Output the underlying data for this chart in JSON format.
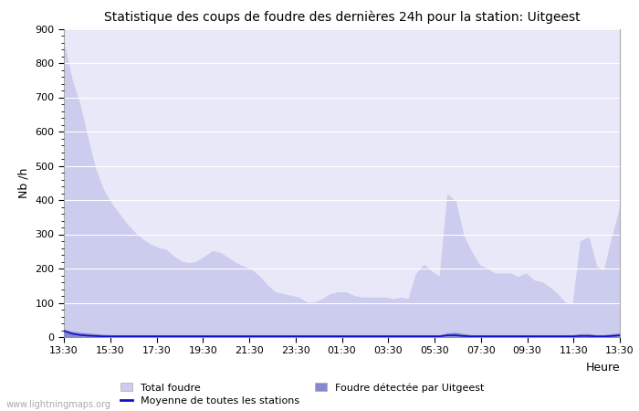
{
  "title": "Statistique des coups de foudre des dernières 24h pour la station: Uitgeest",
  "ylabel": "Nb /h",
  "xlabel": "Heure",
  "ylim": [
    0,
    900
  ],
  "yticks": [
    0,
    100,
    200,
    300,
    400,
    500,
    600,
    700,
    800,
    900
  ],
  "xtick_labels": [
    "13:30",
    "15:30",
    "17:30",
    "19:30",
    "21:30",
    "23:30",
    "01:30",
    "03:30",
    "05:30",
    "07:30",
    "09:30",
    "11:30",
    "13:30"
  ],
  "bg_color": "#ffffff",
  "plot_bg_color": "#e8e8f8",
  "grid_color": "#ffffff",
  "color_total": "#ccccee",
  "color_detected": "#8888cc",
  "color_mean_line": "#1111cc",
  "watermark": "www.lightningmaps.org",
  "total_foudre": [
    855,
    750,
    680,
    580,
    490,
    430,
    390,
    360,
    330,
    305,
    285,
    270,
    260,
    255,
    235,
    220,
    215,
    220,
    235,
    250,
    245,
    230,
    215,
    205,
    195,
    175,
    150,
    130,
    125,
    120,
    115,
    100,
    100,
    110,
    125,
    130,
    130,
    120,
    115,
    115,
    115,
    115,
    110,
    115,
    110,
    185,
    210,
    190,
    175,
    415,
    395,
    295,
    250,
    210,
    200,
    185,
    185,
    185,
    175,
    185,
    165,
    160,
    145,
    125,
    100,
    95,
    280,
    290,
    205,
    195,
    290,
    375
  ],
  "detected_uitgeest": [
    20,
    15,
    12,
    10,
    8,
    6,
    5,
    5,
    5,
    5,
    5,
    5,
    5,
    5,
    5,
    5,
    5,
    5,
    5,
    5,
    5,
    5,
    5,
    5,
    5,
    5,
    5,
    5,
    5,
    5,
    5,
    5,
    5,
    5,
    5,
    5,
    5,
    5,
    5,
    5,
    5,
    5,
    5,
    5,
    5,
    5,
    5,
    5,
    5,
    10,
    12,
    8,
    5,
    5,
    5,
    5,
    5,
    5,
    5,
    5,
    5,
    5,
    5,
    5,
    5,
    5,
    8,
    8,
    5,
    5,
    8,
    10
  ],
  "mean_line": [
    18,
    10,
    6,
    4,
    3,
    2,
    2,
    2,
    2,
    2,
    2,
    2,
    2,
    2,
    2,
    2,
    2,
    2,
    2,
    2,
    2,
    2,
    2,
    2,
    2,
    2,
    2,
    2,
    2,
    2,
    2,
    2,
    2,
    2,
    2,
    2,
    2,
    2,
    2,
    2,
    2,
    2,
    2,
    2,
    2,
    2,
    2,
    2,
    2,
    5,
    5,
    3,
    2,
    2,
    2,
    2,
    2,
    2,
    2,
    2,
    2,
    2,
    2,
    2,
    2,
    2,
    3,
    3,
    2,
    2,
    3,
    5
  ],
  "legend_total_label": "Total foudre",
  "legend_detected_label": "Foudre détectée par Uitgeest",
  "legend_mean_label": "Moyenne de toutes les stations"
}
